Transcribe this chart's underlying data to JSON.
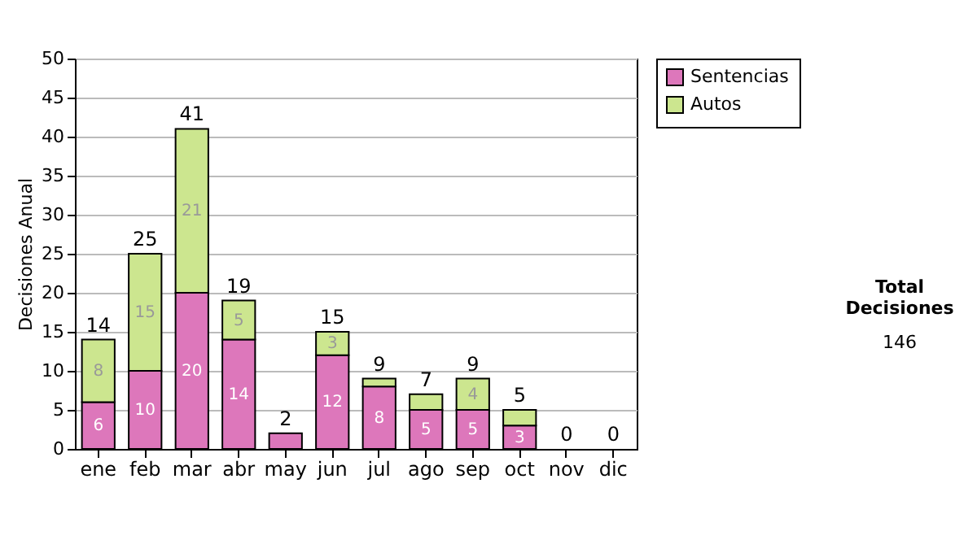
{
  "chart_data": {
    "type": "bar",
    "stacked": true,
    "ylabel": "Decisiones Anual",
    "categories": [
      "ene",
      "feb",
      "mar",
      "abr",
      "may",
      "jun",
      "jul",
      "ago",
      "sep",
      "oct",
      "nov",
      "dic"
    ],
    "series": [
      {
        "name": "Sentencias",
        "color": "#dd77bb",
        "values": [
          6,
          10,
          20,
          14,
          2,
          12,
          8,
          5,
          5,
          3,
          0,
          0
        ],
        "value_labels": [
          "6",
          "10",
          "20",
          "14",
          null,
          "12",
          "8",
          "5",
          "5",
          "3",
          null,
          null
        ]
      },
      {
        "name": "Autos",
        "color": "#cce68f",
        "values": [
          8,
          15,
          21,
          5,
          0,
          3,
          1,
          2,
          4,
          2,
          0,
          0
        ],
        "value_labels": [
          "8",
          "15",
          "21",
          "5",
          null,
          "3",
          null,
          null,
          "4",
          null,
          null,
          null
        ]
      }
    ],
    "totals": [
      "14",
      "25",
      "41",
      "19",
      "2",
      "15",
      "9",
      "7",
      "9",
      "5",
      "0",
      "0"
    ],
    "ylim": [
      0,
      50
    ],
    "yticks": [
      0,
      5,
      10,
      15,
      20,
      25,
      30,
      35,
      40,
      45,
      50
    ],
    "grid": "y",
    "legend": "right",
    "annotations": [
      "Total Decisiones",
      "146"
    ]
  }
}
